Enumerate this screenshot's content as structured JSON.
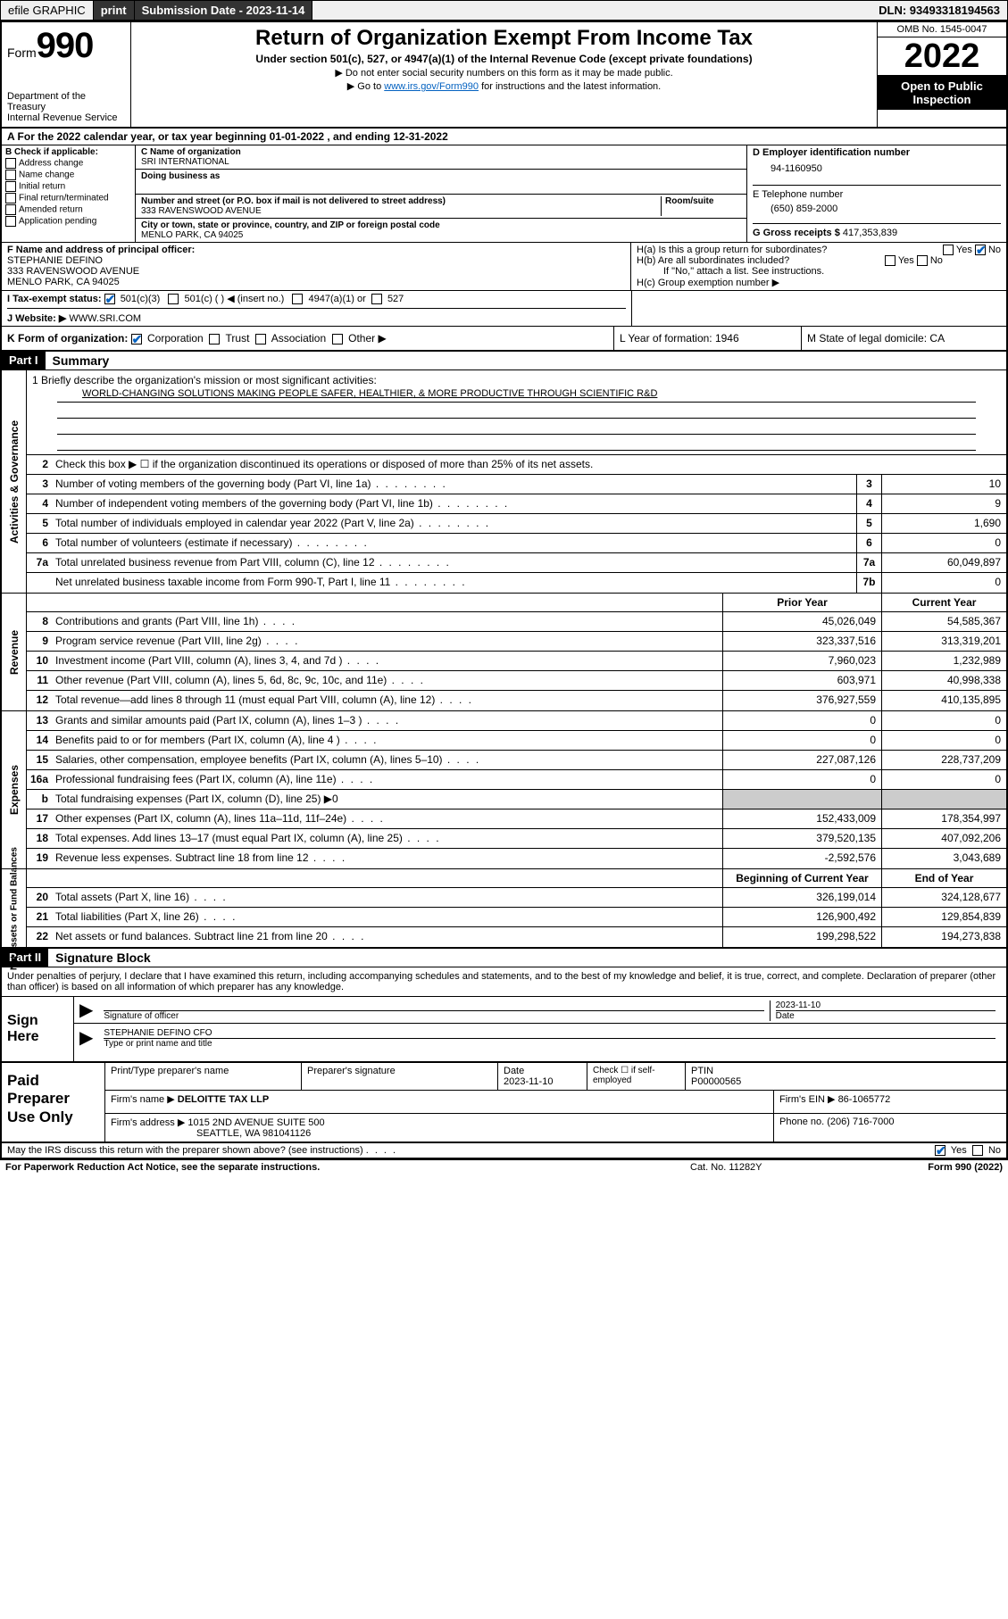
{
  "topbar": {
    "efile": "efile GRAPHIC",
    "print": "print",
    "subdate_lbl": "Submission Date - 2023-11-14",
    "dln": "DLN: 93493318194563"
  },
  "header": {
    "form_prefix": "Form",
    "form_no": "990",
    "dept": "Department of the Treasury",
    "irs": "Internal Revenue Service",
    "title": "Return of Organization Exempt From Income Tax",
    "sub": "Under section 501(c), 527, or 4947(a)(1) of the Internal Revenue Code (except private foundations)",
    "note1": "▶ Do not enter social security numbers on this form as it may be made public.",
    "note2_pre": "▶ Go to ",
    "note2_link": "www.irs.gov/Form990",
    "note2_post": " for instructions and the latest information.",
    "omb": "OMB No. 1545-0047",
    "year": "2022",
    "open": "Open to Public Inspection"
  },
  "rowA": "A For the 2022 calendar year, or tax year beginning 01-01-2022    , and ending 12-31-2022",
  "colB": {
    "hdr": "B Check if applicable:",
    "opts": [
      "Address change",
      "Name change",
      "Initial return",
      "Final return/terminated",
      "Amended return",
      "Application pending"
    ]
  },
  "colC": {
    "name_lbl": "C Name of organization",
    "name": "SRI INTERNATIONAL",
    "dba_lbl": "Doing business as",
    "addr_lbl": "Number and street (or P.O. box if mail is not delivered to street address)",
    "room_lbl": "Room/suite",
    "addr": "333 RAVENSWOOD AVENUE",
    "city_lbl": "City or town, state or province, country, and ZIP or foreign postal code",
    "city": "MENLO PARK, CA  94025"
  },
  "colDE": {
    "d_lbl": "D Employer identification number",
    "d_val": "94-1160950",
    "e_lbl": "E Telephone number",
    "e_val": "(650) 859-2000",
    "g_lbl": "G Gross receipts $",
    "g_val": "417,353,839"
  },
  "rowF": {
    "f_lbl": "F Name and address of principal officer:",
    "f_name": "STEPHANIE DEFINO",
    "f_addr1": "333 RAVENSWOOD AVENUE",
    "f_addr2": "MENLO PARK, CA  94025",
    "ha": "H(a)  Is this a group return for subordinates?",
    "hb": "H(b)  Are all subordinates included?",
    "hb_note": "If \"No,\" attach a list. See instructions.",
    "hc": "H(c)  Group exemption number ▶",
    "yes": "Yes",
    "no": "No"
  },
  "rowI": {
    "lbl": "I  Tax-exempt status:",
    "o1": "501(c)(3)",
    "o2": "501(c) (   ) ◀ (insert no.)",
    "o3": "4947(a)(1) or",
    "o4": "527"
  },
  "rowJ": {
    "lbl": "J  Website: ▶",
    "val": "WWW.SRI.COM"
  },
  "rowK": {
    "lbl": "K Form of organization:",
    "o1": "Corporation",
    "o2": "Trust",
    "o3": "Association",
    "o4": "Other ▶",
    "l": "L Year of formation: 1946",
    "m": "M State of legal domicile: CA"
  },
  "part1": {
    "hdr": "Part I",
    "title": "Summary"
  },
  "vtabs": {
    "gov": "Activities & Governance",
    "rev": "Revenue",
    "exp": "Expenses",
    "net": "Net Assets or\nFund Balances"
  },
  "mission": {
    "l1": "1  Briefly describe the organization's mission or most significant activities:",
    "txt": "WORLD-CHANGING SOLUTIONS MAKING PEOPLE SAFER, HEALTHIER, & MORE PRODUCTIVE THROUGH SCIENTIFIC R&D"
  },
  "gov": {
    "l2": "Check this box ▶ ☐  if the organization discontinued its operations or disposed of more than 25% of its net assets.",
    "rows": [
      {
        "n": "3",
        "t": "Number of voting members of the governing body (Part VI, line 1a)",
        "b": "3",
        "v": "10"
      },
      {
        "n": "4",
        "t": "Number of independent voting members of the governing body (Part VI, line 1b)",
        "b": "4",
        "v": "9"
      },
      {
        "n": "5",
        "t": "Total number of individuals employed in calendar year 2022 (Part V, line 2a)",
        "b": "5",
        "v": "1,690"
      },
      {
        "n": "6",
        "t": "Total number of volunteers (estimate if necessary)",
        "b": "6",
        "v": "0"
      },
      {
        "n": "7a",
        "t": "Total unrelated business revenue from Part VIII, column (C), line 12",
        "b": "7a",
        "v": "60,049,897"
      },
      {
        "n": "",
        "t": "Net unrelated business taxable income from Form 990-T, Part I, line 11",
        "b": "7b",
        "v": "0"
      }
    ]
  },
  "twocol": {
    "b_hdr_prior": "Prior Year",
    "b_hdr_curr": "Current Year",
    "b_hdr_beg": "Beginning of Current Year",
    "b_hdr_end": "End of Year"
  },
  "rev": [
    {
      "n": "8",
      "t": "Contributions and grants (Part VIII, line 1h)",
      "p": "45,026,049",
      "c": "54,585,367"
    },
    {
      "n": "9",
      "t": "Program service revenue (Part VIII, line 2g)",
      "p": "323,337,516",
      "c": "313,319,201"
    },
    {
      "n": "10",
      "t": "Investment income (Part VIII, column (A), lines 3, 4, and 7d )",
      "p": "7,960,023",
      "c": "1,232,989"
    },
    {
      "n": "11",
      "t": "Other revenue (Part VIII, column (A), lines 5, 6d, 8c, 9c, 10c, and 11e)",
      "p": "603,971",
      "c": "40,998,338"
    },
    {
      "n": "12",
      "t": "Total revenue—add lines 8 through 11 (must equal Part VIII, column (A), line 12)",
      "p": "376,927,559",
      "c": "410,135,895"
    }
  ],
  "exp": [
    {
      "n": "13",
      "t": "Grants and similar amounts paid (Part IX, column (A), lines 1–3 )",
      "p": "0",
      "c": "0"
    },
    {
      "n": "14",
      "t": "Benefits paid to or for members (Part IX, column (A), line 4 )",
      "p": "0",
      "c": "0"
    },
    {
      "n": "15",
      "t": "Salaries, other compensation, employee benefits (Part IX, column (A), lines 5–10)",
      "p": "227,087,126",
      "c": "228,737,209"
    },
    {
      "n": "16a",
      "t": "Professional fundraising fees (Part IX, column (A), line 11e)",
      "p": "0",
      "c": "0"
    },
    {
      "n": "b",
      "t": "Total fundraising expenses (Part IX, column (D), line 25) ▶0",
      "p": "",
      "c": "",
      "shade": true
    },
    {
      "n": "17",
      "t": "Other expenses (Part IX, column (A), lines 11a–11d, 11f–24e)",
      "p": "152,433,009",
      "c": "178,354,997"
    },
    {
      "n": "18",
      "t": "Total expenses. Add lines 13–17 (must equal Part IX, column (A), line 25)",
      "p": "379,520,135",
      "c": "407,092,206"
    },
    {
      "n": "19",
      "t": "Revenue less expenses. Subtract line 18 from line 12",
      "p": "-2,592,576",
      "c": "3,043,689"
    }
  ],
  "net": [
    {
      "n": "20",
      "t": "Total assets (Part X, line 16)",
      "p": "326,199,014",
      "c": "324,128,677"
    },
    {
      "n": "21",
      "t": "Total liabilities (Part X, line 26)",
      "p": "126,900,492",
      "c": "129,854,839"
    },
    {
      "n": "22",
      "t": "Net assets or fund balances. Subtract line 21 from line 20",
      "p": "199,298,522",
      "c": "194,273,838"
    }
  ],
  "part2": {
    "hdr": "Part II",
    "title": "Signature Block"
  },
  "sigtext": "Under penalties of perjury, I declare that I have examined this return, including accompanying schedules and statements, and to the best of my knowledge and belief, it is true, correct, and complete. Declaration of preparer (other than officer) is based on all information of which preparer has any knowledge.",
  "sign": {
    "hdr": "Sign Here",
    "sig_lbl": "Signature of officer",
    "date": "2023-11-10",
    "date_lbl": "Date",
    "name": "STEPHANIE DEFINO  CFO",
    "name_lbl": "Type or print name and title"
  },
  "paid": {
    "hdr": "Paid Preparer Use Only",
    "r1": {
      "a": "Print/Type preparer's name",
      "b": "Preparer's signature",
      "c": "Date",
      "c2": "2023-11-10",
      "d": "Check ☐ if self-employed",
      "e": "PTIN",
      "e2": "P00000565"
    },
    "r2": {
      "a": "Firm's name    ▶",
      "a2": "DELOITTE TAX LLP",
      "b": "Firm's EIN ▶",
      "b2": "86-1065772"
    },
    "r3": {
      "a": "Firm's address ▶",
      "a2": "1015 2ND AVENUE SUITE 500",
      "b": "Phone no.",
      "b2": "(206) 716-7000"
    },
    "r3b": "SEATTLE, WA  981041126"
  },
  "footer": {
    "q": "May the IRS discuss this return with the preparer shown above? (see instructions)",
    "yes": "Yes",
    "no": "No",
    "pra": "For Paperwork Reduction Act Notice, see the separate instructions.",
    "cat": "Cat. No. 11282Y",
    "form": "Form 990 (2022)"
  }
}
